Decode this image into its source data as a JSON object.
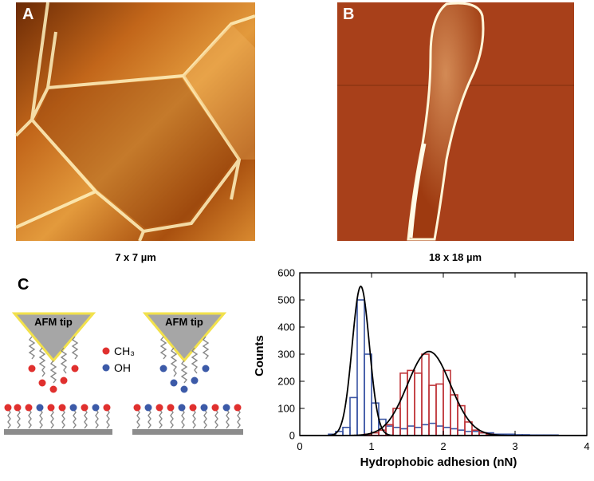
{
  "panels": {
    "a": {
      "label": "A",
      "caption": "7 x 7 µm"
    },
    "b": {
      "label": "B",
      "caption": "18 x 18 µm"
    },
    "c": {
      "label": "C",
      "tip_labels": [
        "AFM tip",
        "AFM tip"
      ],
      "legend": [
        "CH₃",
        "OH"
      ]
    }
  },
  "chart_data": {
    "type": "histogram",
    "x_label": "Hydrophobic adhesion (nN)",
    "y_label": "Counts",
    "bins": [
      0,
      0.1,
      0.2,
      0.3,
      0.4,
      0.5,
      0.6,
      0.7,
      0.8,
      0.9,
      1,
      1.1,
      1.2,
      1.3,
      1.4,
      1.5,
      1.6,
      1.7,
      1.8,
      1.9,
      2,
      2.1,
      2.2,
      2.3,
      2.4,
      2.5,
      2.6,
      2.7,
      2.8,
      2.9,
      3,
      3.1,
      3.2,
      3.3,
      3.4,
      3.5,
      3.6,
      3.7,
      3.8,
      3.9,
      4
    ],
    "series": [
      {
        "color": "#3a55a4",
        "values": [
          0,
          0,
          0,
          0,
          5,
          15,
          30,
          140,
          500,
          300,
          120,
          60,
          35,
          30,
          25,
          35,
          30,
          40,
          45,
          35,
          30,
          25,
          20,
          15,
          15,
          10,
          10,
          5,
          5,
          5,
          3,
          3,
          2,
          2,
          2,
          2,
          0,
          0,
          0,
          0
        ]
      },
      {
        "color": "#c0363a",
        "values": [
          0,
          0,
          0,
          0,
          0,
          0,
          0,
          0,
          0,
          5,
          10,
          20,
          40,
          100,
          230,
          240,
          230,
          300,
          185,
          190,
          240,
          150,
          110,
          50,
          20,
          10,
          5,
          0,
          0,
          0,
          0,
          0,
          0,
          0,
          0,
          0,
          0,
          0,
          0,
          0
        ]
      }
    ],
    "fits": [
      {
        "color": "#000000",
        "mean": 0.85,
        "sd": 0.12,
        "peak": 550
      },
      {
        "color": "#000000",
        "mean": 1.8,
        "sd": 0.3,
        "peak": 310
      }
    ],
    "xlim": [
      0,
      4
    ],
    "xticks": [
      0,
      1,
      2,
      3,
      4
    ],
    "ylim": [
      0,
      600
    ],
    "yticks": [
      0,
      100,
      200,
      300,
      400,
      500,
      600
    ]
  }
}
